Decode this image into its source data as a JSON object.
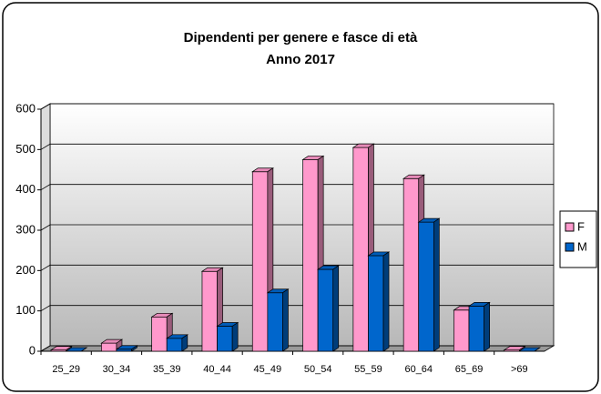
{
  "chart_data": {
    "type": "bar3d",
    "title": "Dipendenti per genere e fasce di età",
    "subtitle": "Anno 2017",
    "categories": [
      "25_29",
      "30_34",
      "35_39",
      "40_44",
      "45_49",
      "50_54",
      "55_59",
      "60_64",
      "65_69",
      ">69"
    ],
    "series": [
      {
        "name": "F",
        "color": "#ff99cc",
        "values": [
          3,
          20,
          85,
          198,
          445,
          475,
          505,
          428,
          102,
          3
        ]
      },
      {
        "name": "M",
        "color": "#0066cc",
        "values": [
          0,
          5,
          32,
          62,
          145,
          203,
          237,
          320,
          112,
          0
        ]
      }
    ],
    "ylim": [
      0,
      600
    ],
    "yticks": [
      0,
      100,
      200,
      300,
      400,
      500,
      600
    ],
    "grid": true,
    "legend": "right"
  }
}
